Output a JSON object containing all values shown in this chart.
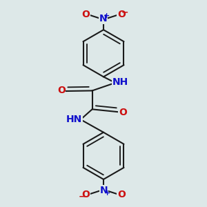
{
  "bg_color": "#dde8e8",
  "bond_color": "#1a1a1a",
  "N_color": "#1010cc",
  "O_color": "#cc1010",
  "lw": 1.5,
  "lw_inner": 1.2,
  "figsize": [
    3.0,
    3.0
  ],
  "dpi": 100,
  "font_size": 10,
  "font_size_small": 8,
  "xlim": [
    0.15,
    0.85
  ],
  "ylim": [
    0.02,
    0.98
  ]
}
